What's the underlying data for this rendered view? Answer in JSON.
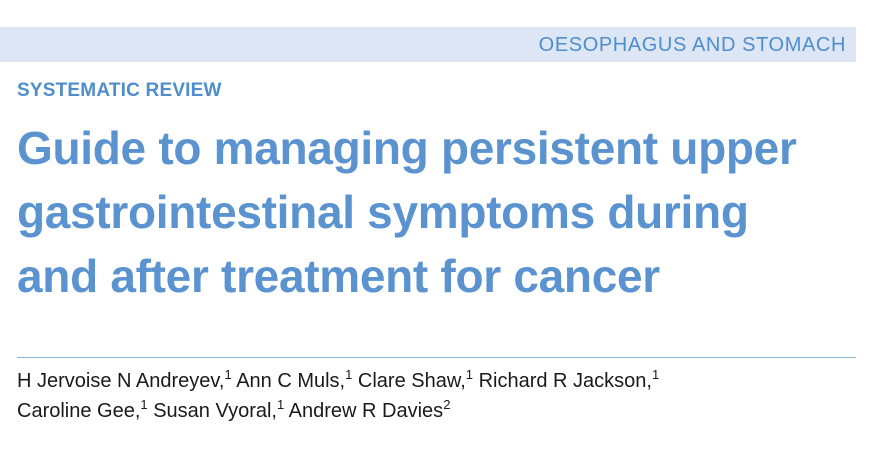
{
  "header": {
    "section": "OESOPHAGUS AND STOMACH"
  },
  "article": {
    "type": "SYSTEMATIC REVIEW",
    "title_lines": [
      "Guide to managing persistent upper",
      "gastrointestinal symptoms during",
      "and after treatment for cancer"
    ]
  },
  "authors": [
    {
      "name": "H Jervoise N Andreyev,",
      "affiliation": "1"
    },
    {
      "name": "Ann C Muls,",
      "affiliation": "1"
    },
    {
      "name": "Clare Shaw,",
      "affiliation": "1"
    },
    {
      "name": "Richard R Jackson,",
      "affiliation": "1"
    },
    {
      "name": "Caroline Gee,",
      "affiliation": "1"
    },
    {
      "name": "Susan Vyoral,",
      "affiliation": "1"
    },
    {
      "name": "Andrew R Davies",
      "affiliation": "2"
    }
  ],
  "colors": {
    "accent": "#5a93cf",
    "band": "#dce6f4",
    "rule": "#8fb4dc",
    "text": "#1a1a1a"
  }
}
